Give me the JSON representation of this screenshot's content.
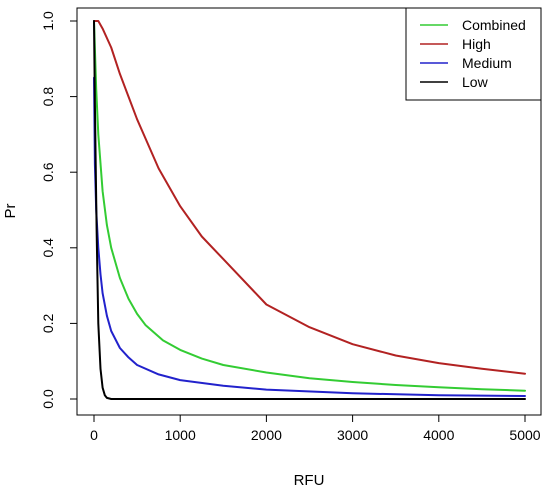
{
  "chart_data": {
    "type": "line",
    "xlabel": "RFU",
    "ylabel": "Pr",
    "xlim": [
      0,
      5000
    ],
    "ylim": [
      0,
      1
    ],
    "x_ticks": [
      0,
      1000,
      2000,
      3000,
      4000,
      5000
    ],
    "y_ticks": [
      "0.0",
      "0.2",
      "0.4",
      "0.6",
      "0.8",
      "1.0"
    ],
    "grid": false,
    "legend_position": "top-right",
    "series": [
      {
        "name": "Combined",
        "color": "#33cc33",
        "x": [
          0,
          25,
          50,
          100,
          150,
          200,
          300,
          400,
          500,
          600,
          800,
          1000,
          1250,
          1500,
          2000,
          2500,
          3000,
          3500,
          4000,
          4500,
          5000
        ],
        "y": [
          1.0,
          0.82,
          0.7,
          0.55,
          0.46,
          0.4,
          0.32,
          0.265,
          0.225,
          0.195,
          0.155,
          0.13,
          0.107,
          0.09,
          0.07,
          0.055,
          0.045,
          0.037,
          0.031,
          0.026,
          0.022
        ]
      },
      {
        "name": "High",
        "color": "#b22222",
        "x": [
          0,
          50,
          100,
          200,
          300,
          400,
          500,
          750,
          1000,
          1250,
          1500,
          2000,
          2500,
          3000,
          3500,
          4000,
          4500,
          5000
        ],
        "y": [
          1.0,
          1.0,
          0.98,
          0.93,
          0.86,
          0.8,
          0.74,
          0.61,
          0.51,
          0.43,
          0.37,
          0.25,
          0.19,
          0.145,
          0.115,
          0.095,
          0.08,
          0.067
        ]
      },
      {
        "name": "Medium",
        "color": "#2222cc",
        "x": [
          0,
          10,
          25,
          50,
          75,
          100,
          150,
          200,
          300,
          400,
          500,
          750,
          1000,
          1500,
          2000,
          3000,
          4000,
          5000
        ],
        "y": [
          0.85,
          0.62,
          0.5,
          0.4,
          0.33,
          0.28,
          0.22,
          0.18,
          0.135,
          0.11,
          0.09,
          0.065,
          0.05,
          0.035,
          0.025,
          0.015,
          0.01,
          0.008
        ]
      },
      {
        "name": "Low",
        "color": "#000000",
        "x": [
          0,
          5,
          10,
          20,
          30,
          40,
          50,
          75,
          100,
          125,
          150,
          200,
          500,
          1000,
          2000,
          3000,
          4000,
          5000
        ],
        "y": [
          1.0,
          0.9,
          0.78,
          0.62,
          0.45,
          0.33,
          0.2,
          0.08,
          0.03,
          0.01,
          0.003,
          0.0,
          0.0,
          0.0,
          0.0,
          0.0,
          0.0,
          0.0
        ]
      }
    ]
  }
}
